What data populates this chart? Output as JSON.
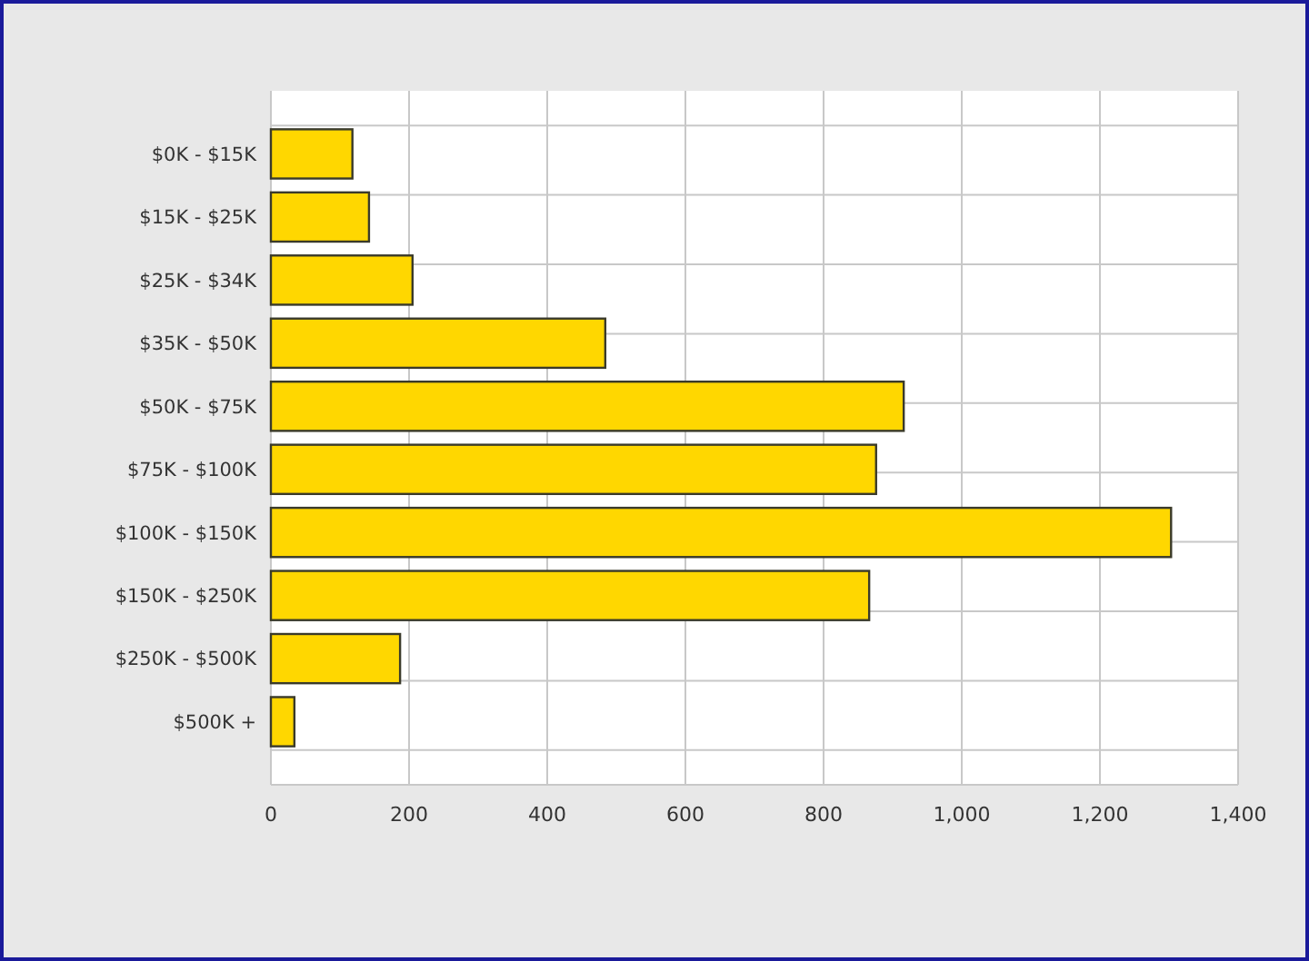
{
  "chart_data": {
    "type": "bar",
    "orientation": "horizontal",
    "categories": [
      "$0K - $15K",
      "$15K - $25K",
      "$25K - $34K",
      "$35K - $50K",
      "$50K - $75K",
      "$75K - $100K",
      "$100K - $150K",
      "$150K - $250K",
      "$250K - $500K",
      "$500K +"
    ],
    "values": [
      118,
      142,
      205,
      484,
      916,
      876,
      1303,
      866,
      187,
      34
    ],
    "color": "#ffd700",
    "xlim": [
      0,
      1400
    ],
    "xticks": [
      0,
      200,
      400,
      600,
      800,
      {
        "value": 1000,
        "label": "1,000"
      },
      {
        "value": 1200,
        "label": "1,200"
      },
      {
        "value": 1400,
        "label": "1,400"
      }
    ],
    "grid": true
  }
}
